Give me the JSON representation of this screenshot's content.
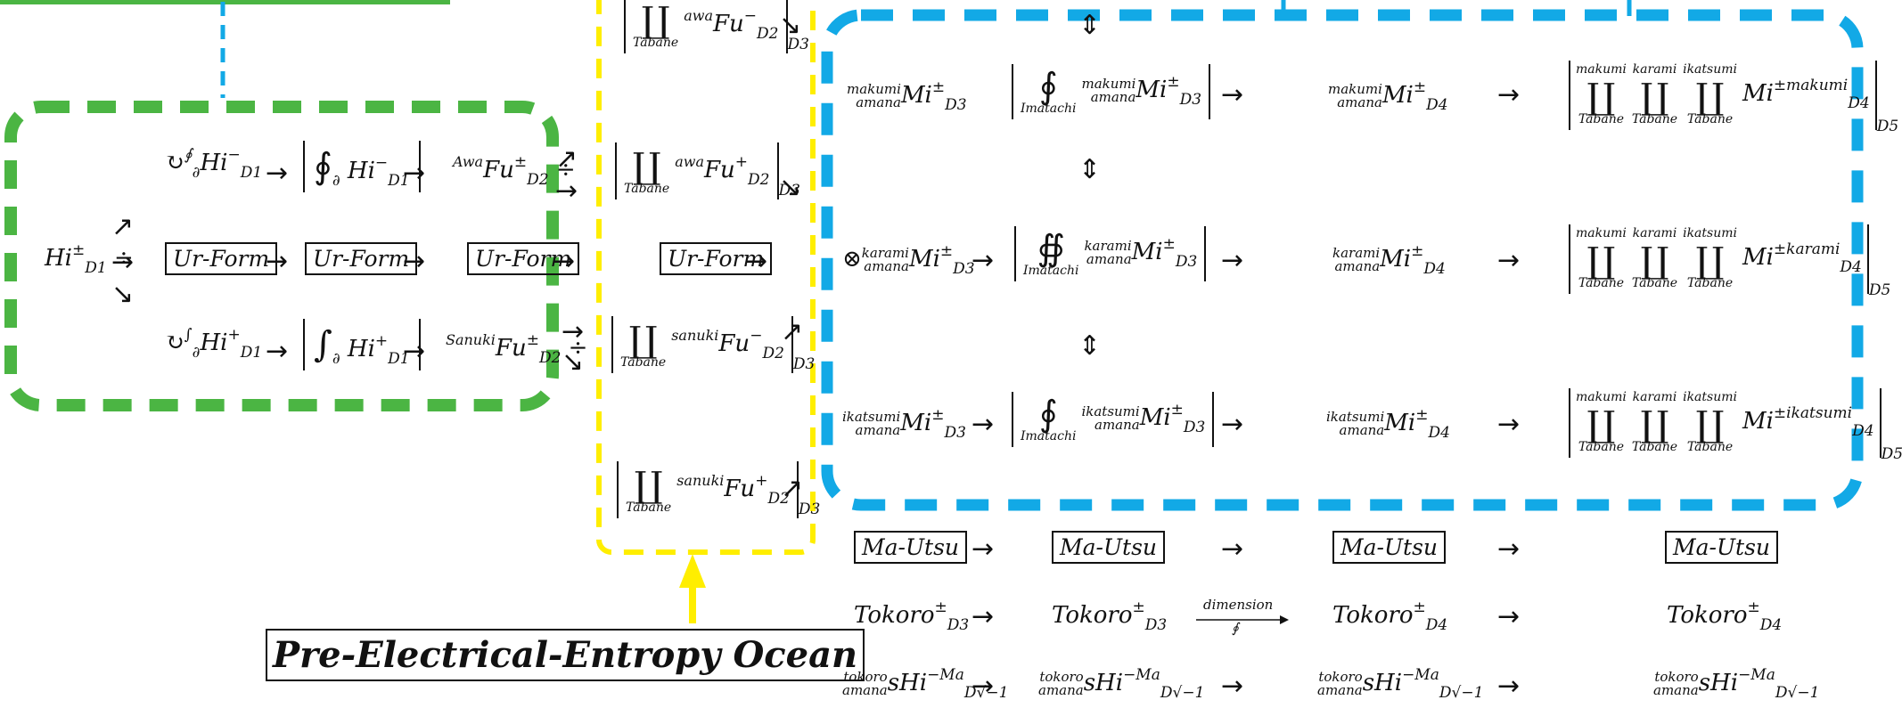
{
  "colors": {
    "green": "#4bb543",
    "blue": "#12a9e6",
    "yellow": "#ffee00",
    "ink": "#111111"
  },
  "left_group": {
    "root": "Hi",
    "root_sup": "±",
    "root_sub": "D1",
    "ur_forms": [
      "Ur-Form",
      "Ur-Form",
      "Ur-Form"
    ],
    "upper_term": "Hi",
    "upper_term_sup": "−",
    "lower_term_sup": "+",
    "sub_d1": "D1",
    "partial": "∂",
    "awa_label": "Awa",
    "sanuki_label": "Sanuki",
    "fu": "Fu",
    "fu_sup": "±",
    "fu_sub": "D2"
  },
  "yellow_group": {
    "tabane": "Tabane",
    "awa": "awa",
    "sanuki": "sanuki",
    "fu": "Fu",
    "d2": "D2",
    "d3": "D3",
    "ur_form": "Ur-Form"
  },
  "blue_group": {
    "rows": [
      {
        "upper": "makumi",
        "lower": "amana",
        "sup5": "±makumi"
      },
      {
        "upper": "karami",
        "lower": "amana",
        "sup5": "±karami"
      },
      {
        "upper": "ikatsumi",
        "lower": "amana",
        "sup5": "±ikatsumi"
      }
    ],
    "mi": "Mi",
    "pm": "±",
    "d3": "D3",
    "d4": "D4",
    "d5": "D5",
    "imatachi": "Imatachi",
    "tabane": "Tabane",
    "prod_labels": [
      "makumi",
      "karami",
      "ikatsumi"
    ],
    "updown": "⇕"
  },
  "bottom": {
    "ma_utsu": [
      "Ma-Utsu",
      "Ma-Utsu",
      "Ma-Utsu",
      "Ma-Utsu"
    ],
    "tokoro": "Tokoro",
    "tokoro_subs": [
      "D3",
      "D3",
      "D4",
      "D4"
    ],
    "dimension_label": "dimension",
    "dimension_under": "∮",
    "tokoro_upper": "tokoro",
    "tokoro_lower": "amana",
    "shi": "sHi",
    "shi_sup": "−Ma",
    "shi_sub": "D√−1"
  },
  "ocean_label": "Pre-Electrical-Entropy Ocean"
}
